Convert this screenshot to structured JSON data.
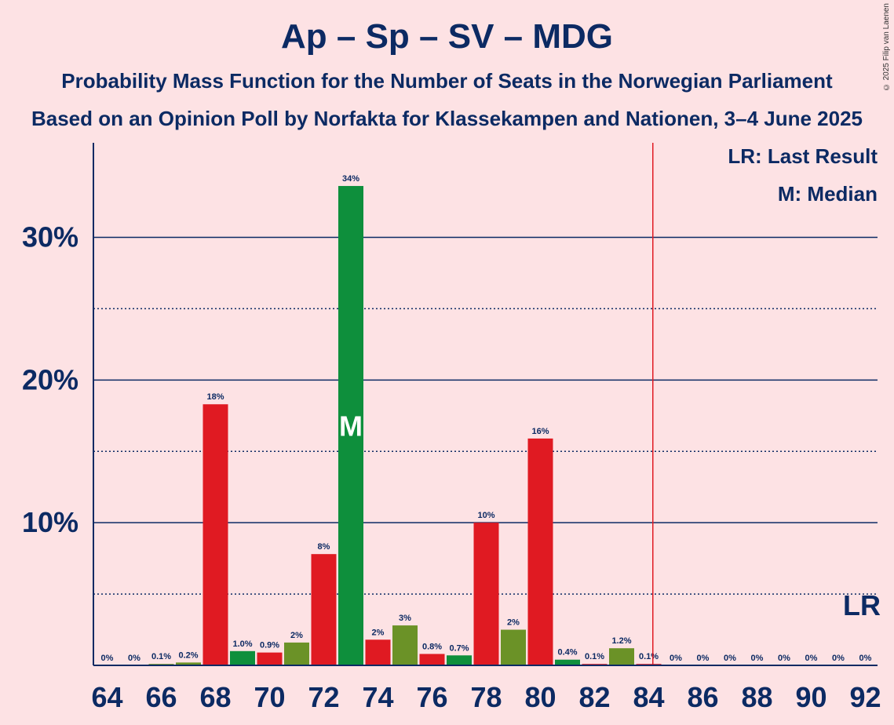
{
  "title": "Ap – Sp – SV – MDG",
  "subtitle_1": "Probability Mass Function for the Number of Seats in the Norwegian Parliament",
  "subtitle_2": "Based on an Opinion Poll by Norfakta for Klassekampen and Nationen, 3–4 June 2025",
  "copyright": "© 2025 Filip van Laenen",
  "legend": {
    "last_result": "LR: Last Result",
    "median": "M: Median"
  },
  "markers": {
    "median_label": "M",
    "last_result_label": "LR"
  },
  "colors": {
    "red": "#e01a22",
    "green": "#0e8f3c",
    "olive": "#6b9227",
    "text": "#0c2a63",
    "background": "#fde2e4",
    "last_result_line": "#e01a22"
  },
  "chart_data": {
    "type": "bar",
    "x": [
      64,
      65,
      66,
      67,
      68,
      69,
      70,
      71,
      72,
      73,
      74,
      75,
      76,
      77,
      78,
      79,
      80,
      81,
      82,
      83,
      84,
      85,
      86,
      87,
      88,
      89,
      90,
      91,
      92
    ],
    "values": [
      0,
      0,
      0.1,
      0.2,
      18.3,
      1.0,
      0.9,
      1.6,
      7.8,
      33.6,
      1.8,
      2.8,
      0.8,
      0.7,
      10.0,
      2.5,
      15.9,
      0.4,
      0.1,
      1.2,
      0.1,
      0,
      0,
      0,
      0,
      0,
      0,
      0,
      0
    ],
    "value_labels": [
      "0%",
      "0%",
      "0.1%",
      "0.2%",
      "18%",
      "1.0%",
      "0.9%",
      "2%",
      "8%",
      "34%",
      "2%",
      "3%",
      "0.8%",
      "0.7%",
      "10%",
      "2%",
      "16%",
      "0.4%",
      "0.1%",
      "1.2%",
      "0.1%",
      "0%",
      "0%",
      "0%",
      "0%",
      "0%",
      "0%",
      "0%",
      "0%"
    ],
    "bar_colors": [
      "red",
      "green",
      "olive",
      "olive",
      "red",
      "green",
      "red",
      "olive",
      "red",
      "green",
      "red",
      "olive",
      "red",
      "green",
      "red",
      "olive",
      "red",
      "green",
      "red",
      "olive",
      "red",
      "green",
      "red",
      "olive",
      "red",
      "green",
      "red",
      "olive",
      "red"
    ],
    "x_tick_labels": [
      "64",
      "66",
      "68",
      "70",
      "72",
      "74",
      "76",
      "78",
      "80",
      "82",
      "84",
      "86",
      "88",
      "90",
      "92"
    ],
    "y_tick_labels": [
      "10%",
      "20%",
      "30%"
    ],
    "y_ticks": [
      10,
      20,
      30
    ],
    "y_minor_ticks": [
      5,
      15,
      25
    ],
    "ylim": [
      0,
      36.5
    ],
    "xlim": [
      63.5,
      92.5
    ],
    "median": 73,
    "last_result": 85
  }
}
